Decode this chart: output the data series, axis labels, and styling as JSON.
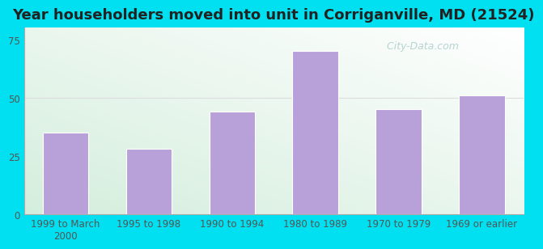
{
  "title": "Year householders moved into unit in Corriganville, MD (21524)",
  "categories": [
    "1999 to March\n2000",
    "1995 to 1998",
    "1990 to 1994",
    "1980 to 1989",
    "1970 to 1979",
    "1969 or earlier"
  ],
  "values": [
    35,
    28,
    44,
    70,
    45,
    51
  ],
  "bar_color": "#b8a0d8",
  "bar_edge_color": "#ffffff",
  "ylim": [
    0,
    80
  ],
  "yticks": [
    0,
    25,
    50,
    75
  ],
  "grid_y": [
    50
  ],
  "grid_color": "#dddddd",
  "background_outer": "#00e0f0",
  "bg_color_topleft": "#e8f5e9",
  "bg_color_bottomleft": "#d0eedc",
  "bg_color_topright": "#f5fffa",
  "bg_color_bottomright": "#e8f5e9",
  "title_fontsize": 13,
  "tick_fontsize": 8.5,
  "watermark": " City-Data.com",
  "watermark_color": "#aacccc",
  "watermark_fontsize": 9
}
